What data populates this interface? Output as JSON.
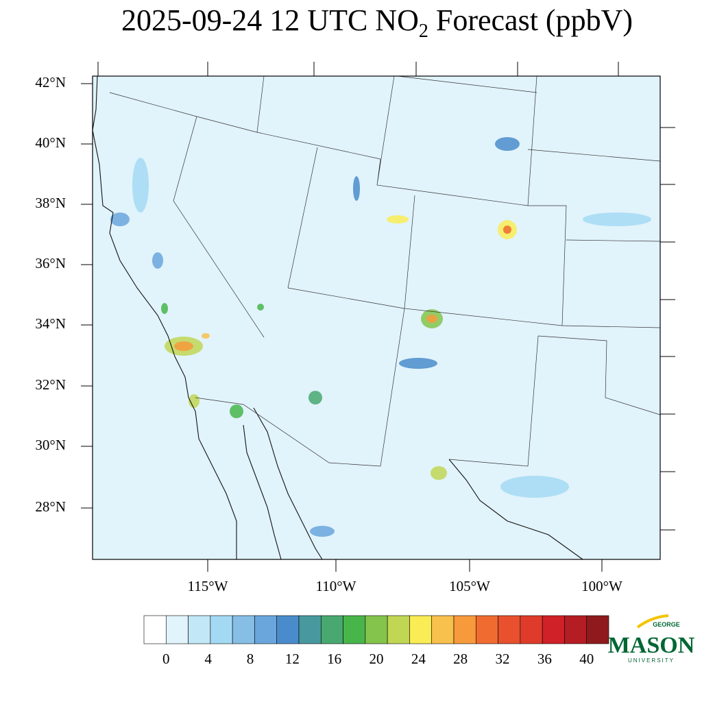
{
  "title": {
    "main": "2025-09-24 12 UTC NO",
    "sub": "2",
    "rest": " Forecast (ppbV)"
  },
  "lat_labels": [
    "42°N",
    "40°N",
    "38°N",
    "36°N",
    "34°N",
    "32°N",
    "30°N",
    "28°N"
  ],
  "lon_labels": [
    "115°W",
    "110°W",
    "105°W",
    "100°W"
  ],
  "colorbar": {
    "labels": [
      0,
      4,
      8,
      12,
      16,
      20,
      24,
      28,
      32,
      36,
      40
    ],
    "colors": [
      "#ffffff",
      "#e1f3fb",
      "#c2e7f7",
      "#a3d9f3",
      "#86bee6",
      "#6aa6dc",
      "#4a8ccb",
      "#47999e",
      "#48a870",
      "#48b54a",
      "#84c44c",
      "#c1d653",
      "#f9ec55",
      "#f8c04c",
      "#f69a3c",
      "#ef6b30",
      "#e8502e",
      "#de3b2a",
      "#cf2127",
      "#b51d24",
      "#8e1a1e"
    ]
  },
  "logo": {
    "top": "GEORGE",
    "main": "MASON",
    "bottom": "UNIVERSITY"
  }
}
